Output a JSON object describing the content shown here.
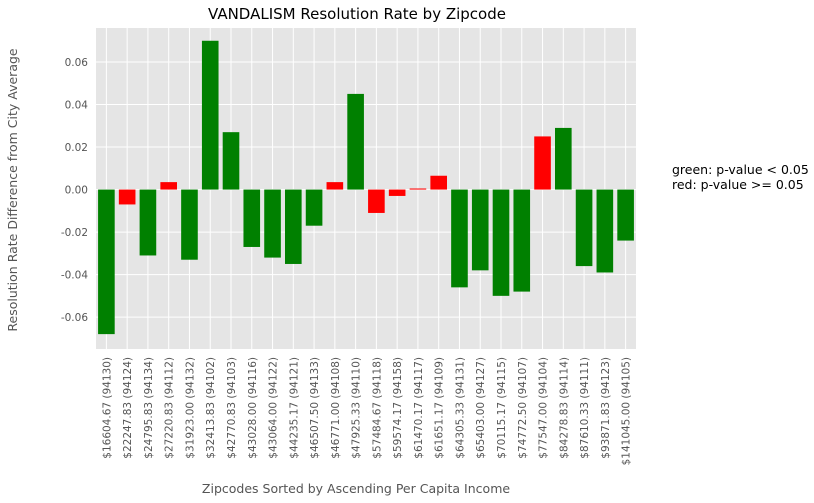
{
  "chart_data": {
    "type": "bar",
    "title": "VANDALISM Resolution Rate by Zipcode",
    "xlabel": "Zipcodes Sorted by Ascending Per Capita Income",
    "ylabel": "Resolution Rate Difference from City Average",
    "ylim": [
      -0.075,
      0.076
    ],
    "yticks": [
      "0.06",
      "0.04",
      "0.02",
      "0.00",
      "-0.02",
      "-0.04",
      "-0.06"
    ],
    "grid": true,
    "categories": [
      "$16604.67 (94130)",
      "$22247.83 (94124)",
      "$24795.83 (94134)",
      "$27220.83 (94112)",
      "$31923.00 (94132)",
      "$32413.83 (94102)",
      "$42770.83 (94103)",
      "$43028.00 (94116)",
      "$43064.00 (94122)",
      "$44235.17 (94121)",
      "$46507.50 (94133)",
      "$46771.00 (94108)",
      "$47925.33 (94110)",
      "$57484.67 (94118)",
      "$59574.17 (94158)",
      "$61470.17 (94117)",
      "$61651.17 (94109)",
      "$64305.33 (94131)",
      "$65403.00 (94127)",
      "$70115.17 (94115)",
      "$74772.50 (94107)",
      "$77547.00 (94104)",
      "$84278.83 (94114)",
      "$87610.33 (94111)",
      "$93871.83 (94123)",
      "$141045.00 (94105)"
    ],
    "values": [
      -0.068,
      -0.007,
      -0.031,
      0.0035,
      -0.033,
      0.07,
      0.027,
      -0.027,
      -0.032,
      -0.035,
      -0.017,
      0.0035,
      0.045,
      -0.011,
      -0.003,
      0.0005,
      0.0065,
      -0.046,
      -0.038,
      -0.05,
      -0.048,
      0.025,
      0.029,
      -0.036,
      -0.039,
      -0.024
    ],
    "significant": [
      true,
      false,
      true,
      false,
      true,
      true,
      true,
      true,
      true,
      true,
      true,
      false,
      true,
      false,
      false,
      false,
      false,
      true,
      true,
      true,
      true,
      false,
      true,
      true,
      true,
      true
    ],
    "colors": {
      "significant": "#008000",
      "not_significant": "#ff0000",
      "plot_bg": "#e5e5e5",
      "grid": "#ffffff"
    },
    "annotation": [
      "green: p-value < 0.05",
      "red: p-value >= 0.05"
    ]
  }
}
